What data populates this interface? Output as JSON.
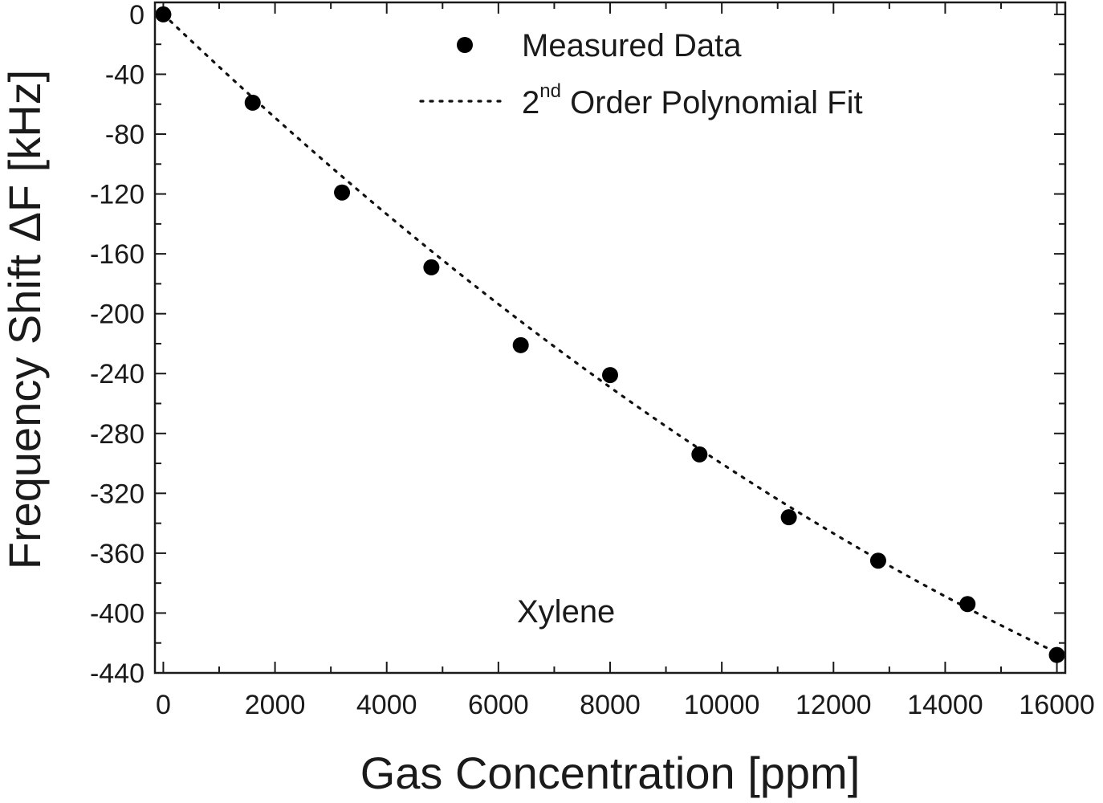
{
  "chart_data": {
    "type": "scatter",
    "xlabel": "Gas Concentration [ppm]",
    "ylabel": "Frequency Shift ΔF [kHz]",
    "xlim": [
      -150,
      16150
    ],
    "ylim": [
      -440,
      8
    ],
    "xticks": [
      0,
      2000,
      4000,
      6000,
      8000,
      10000,
      12000,
      14000,
      16000
    ],
    "xtick_labels": [
      "0",
      "2000",
      "4000",
      "6000",
      "8000",
      "10000",
      "12000",
      "14000",
      "16000"
    ],
    "yticks": [
      0,
      -40,
      -80,
      -120,
      -160,
      -200,
      -240,
      -280,
      -320,
      -360,
      -400,
      -440
    ],
    "ytick_labels": [
      "0",
      "-40",
      "-80",
      "-120",
      "-160",
      "-200",
      "-240",
      "-280",
      "-320",
      "-360",
      "-400",
      "-440"
    ],
    "annotation": "Xylene",
    "legend": {
      "placement": "top-right",
      "entries": [
        {
          "label": "Measured Data",
          "style": "marker"
        },
        {
          "label_main": "2",
          "label_sup": "nd",
          "label_rest": " Order Polynomial Fit",
          "style": "dotted-line"
        }
      ]
    },
    "series": [
      {
        "name": "Measured Data",
        "style": "scatter",
        "color": "#000000",
        "x": [
          0,
          1600,
          3200,
          4800,
          6400,
          8000,
          9600,
          11200,
          12800,
          14400,
          16000
        ],
        "y": [
          0,
          -59,
          -119,
          -169,
          -221,
          -241,
          -294,
          -336,
          -365,
          -394,
          -428
        ]
      },
      {
        "name": "2nd Order Polynomial Fit",
        "style": "dotted-line",
        "color": "#000000",
        "fit_coefficients": {
          "a0": 0,
          "a1": -0.03563,
          "a2": 5.61e-07
        },
        "x_range": [
          0,
          16000
        ]
      }
    ]
  }
}
